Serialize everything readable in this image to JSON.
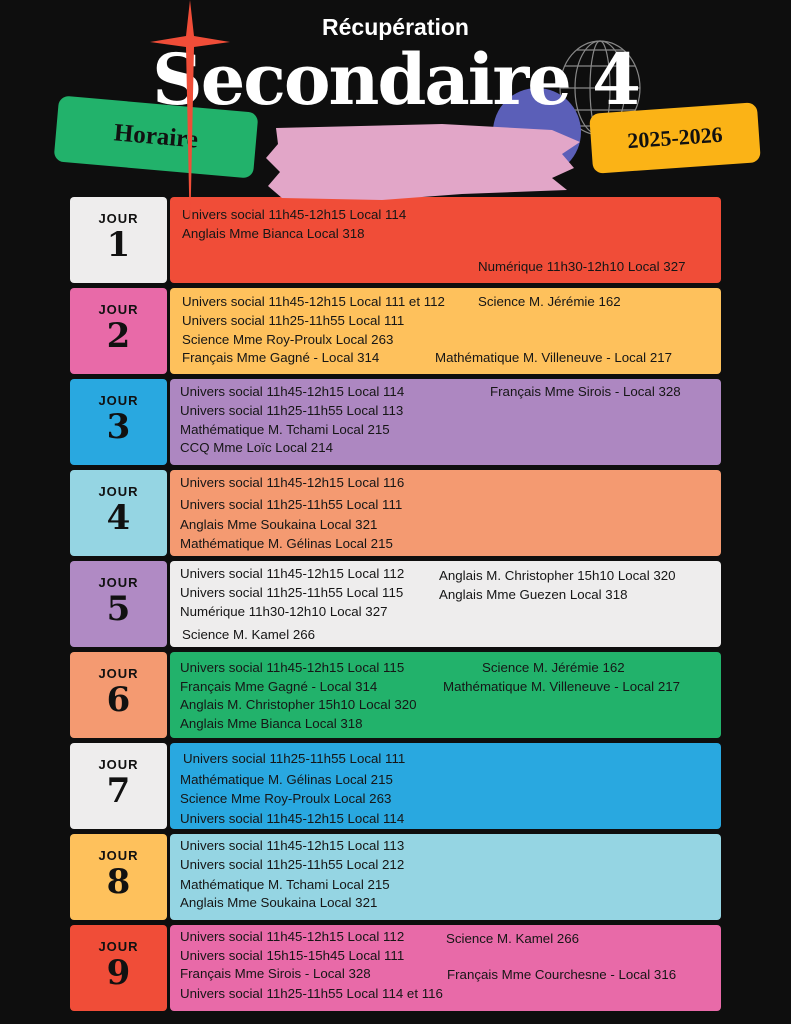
{
  "header": {
    "subtitle": "Récupération",
    "title": "Secondaire 4",
    "tag_left": "Horaire",
    "tag_right": "2025-2026"
  },
  "colors": {
    "background": "#0e0e0e",
    "red": "#f04d38",
    "yellow": "#fec15c",
    "purple": "#ad87c1",
    "salmon": "#f49a71",
    "light_gray": "#eeeded",
    "green": "#22b26b",
    "blue": "#29a8e0",
    "light_blue": "#95d5e3",
    "pink": "#e86aa8"
  },
  "day_label": "JOUR",
  "days": [
    {
      "number": "1",
      "label_color": "#eeeded",
      "color": "#f04d38",
      "items": [
        "Univers social 11h45-12h15 Local 114",
        "Anglais Mme Bianca Local 318",
        "Numérique 11h30-12h10 Local 327"
      ]
    },
    {
      "number": "2",
      "label_color": "#e86aa8",
      "color": "#fec15c",
      "items": [
        "Univers social 11h45-12h15 Local 111 et 112",
        "Univers social 11h25-11h55 Local 111",
        "Science Mme Roy-Proulx  Local 263",
        "Français  Mme Gagné - Local 314",
        "Science M. Jérémie  162",
        "Mathématique M. Villeneuve - Local 217"
      ]
    },
    {
      "number": "3",
      "label_color": "#29a8e0",
      "color": "#ad87c1",
      "items": [
        "Univers social 11h45-12h15 Local 114",
        "Univers social 11h25-11h55 Local 113",
        "Mathématique M. Tchami Local 215",
        "CCQ Mme Loïc Local 214",
        "Français  Mme Sirois - Local 328"
      ]
    },
    {
      "number": "4",
      "label_color": "#95d5e3",
      "color": "#f49a71",
      "items": [
        "Univers social 11h45-12h15 Local 116",
        "Univers social 11h25-11h55 Local 111",
        "Anglais Mme Soukaina Local  321",
        "Mathématique M. Gélinas Local 215"
      ]
    },
    {
      "number": "5",
      "label_color": "#b08ac4",
      "color": "#eeeded",
      "items": [
        "Univers social 11h45-12h15 Local 112",
        "Univers social 11h25-11h55 Local 115",
        "Numérique 11h30-12h10 Local 327",
        "Science M. Kamel  266",
        "Anglais M. Christopher 15h10 Local 320",
        "Anglais Mme Guezen Local 318"
      ]
    },
    {
      "number": "6",
      "label_color": "#f49a71",
      "color": "#22b26b",
      "items": [
        "Univers social 11h45-12h15 Local 115",
        "Français  Mme Gagné - Local 314",
        "Anglais M. Christopher 15h10 Local 320",
        "Anglais Mme Bianca  Local 318",
        "Science M. Jérémie  162",
        "Mathématique M. Villeneuve - Local 217"
      ]
    },
    {
      "number": "7",
      "label_color": "#eeeded",
      "color": "#29a8e0",
      "items": [
        "Univers social 11h25-11h55 Local 111",
        "Mathématique M. Gélinas Local 215",
        "Science Mme Roy-Proulx  Local 263",
        "Univers social 11h45-12h15 Local 114"
      ]
    },
    {
      "number": "8",
      "label_color": "#fec15c",
      "color": "#95d5e3",
      "items": [
        "Univers social 11h45-12h15 Local 113",
        "Univers social 11h25-11h55 Local 212",
        "Mathématique M. Tchami Local 215",
        "Anglais Mme Soukaina Local  321"
      ]
    },
    {
      "number": "9",
      "label_color": "#f04d38",
      "color": "#e86aa8",
      "items": [
        "Univers social 11h45-12h15 Local 112",
        "Univers social 15h15-15h45 Local 111",
        "Français  Mme Sirois - Local 328",
        "Univers social 11h25-11h55 Local 114 et 116",
        "Science M. Kamel  266",
        "Français  Mme Courchesne - Local 316"
      ]
    }
  ]
}
